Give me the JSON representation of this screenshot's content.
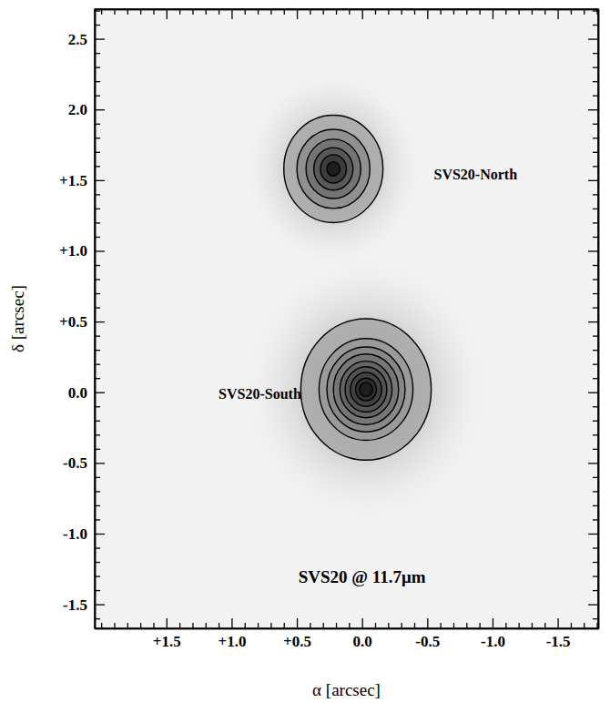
{
  "chart_data": {
    "type": "contour",
    "xlabel": "α [arcsec]",
    "ylabel": "δ [arcsec]",
    "xlim": [
      2.05,
      -1.81
    ],
    "ylim": [
      -1.67,
      2.71
    ],
    "xticks": [
      {
        "value": 1.5,
        "label": "+1.5"
      },
      {
        "value": 1.0,
        "label": "+1.0"
      },
      {
        "value": 0.5,
        "label": "+0.5"
      },
      {
        "value": 0,
        "label": "0.0"
      },
      -0.5,
      {
        "value": -1.0,
        "label": "-1.0"
      },
      -1.5
    ],
    "yticks": [
      -1.5,
      {
        "value": -1.0,
        "label": "-1.0"
      },
      -0.5,
      {
        "value": 0,
        "label": "0.0"
      },
      {
        "value": 0.5,
        "label": "+0.5"
      },
      {
        "value": 1.0,
        "label": "+1.0"
      },
      {
        "value": 1.5,
        "label": "+1.5"
      },
      {
        "value": 2.0,
        "label": "2.0"
      },
      2.5
    ],
    "xticks_minor": [
      2.0,
      1.9,
      1.8,
      1.7,
      1.6,
      1.4,
      1.3,
      1.2,
      1.1,
      0.9,
      0.8,
      0.7,
      0.6,
      0.4,
      0.3,
      0.2,
      0.1,
      -0.1,
      -0.2,
      -0.3,
      -0.4,
      -0.6,
      -0.7,
      -0.8,
      -0.9,
      -1.1,
      -1.2,
      -1.3,
      -1.4,
      -1.6,
      -1.7,
      -1.8
    ],
    "yticks_minor": [
      -1.6,
      -1.4,
      -1.3,
      -1.2,
      -1.1,
      -0.9,
      -0.8,
      -0.7,
      -0.6,
      -0.4,
      -0.3,
      -0.2,
      -0.1,
      0.1,
      0.2,
      0.3,
      0.4,
      0.6,
      0.7,
      0.8,
      0.9,
      1.1,
      1.2,
      1.3,
      1.4,
      1.6,
      1.7,
      1.8,
      1.9,
      2.1,
      2.2,
      2.3,
      2.4,
      2.6,
      2.7
    ],
    "sources": [
      {
        "name": "SVS20-North",
        "x": 0.22,
        "y": 1.58,
        "halo": 0.7,
        "contours": [
          0.38,
          0.28,
          0.21,
          0.15,
          0.1,
          0.05
        ]
      },
      {
        "name": "SVS20-South",
        "x": -0.03,
        "y": 0.02,
        "halo": 0.95,
        "contours": [
          0.5,
          0.36,
          0.3,
          0.25,
          0.2,
          0.16,
          0.12,
          0.08,
          0.05
        ]
      }
    ],
    "annotations": [
      {
        "text": "SVS20-North",
        "x": -0.55,
        "y": 1.53
      },
      {
        "text": "SVS20-South",
        "x": 1.1,
        "y": -0.02
      },
      {
        "text": "SVS20 @ 11.7μm",
        "x": 0.0,
        "y": -1.32
      }
    ],
    "grid": false,
    "tick_labels": true
  }
}
